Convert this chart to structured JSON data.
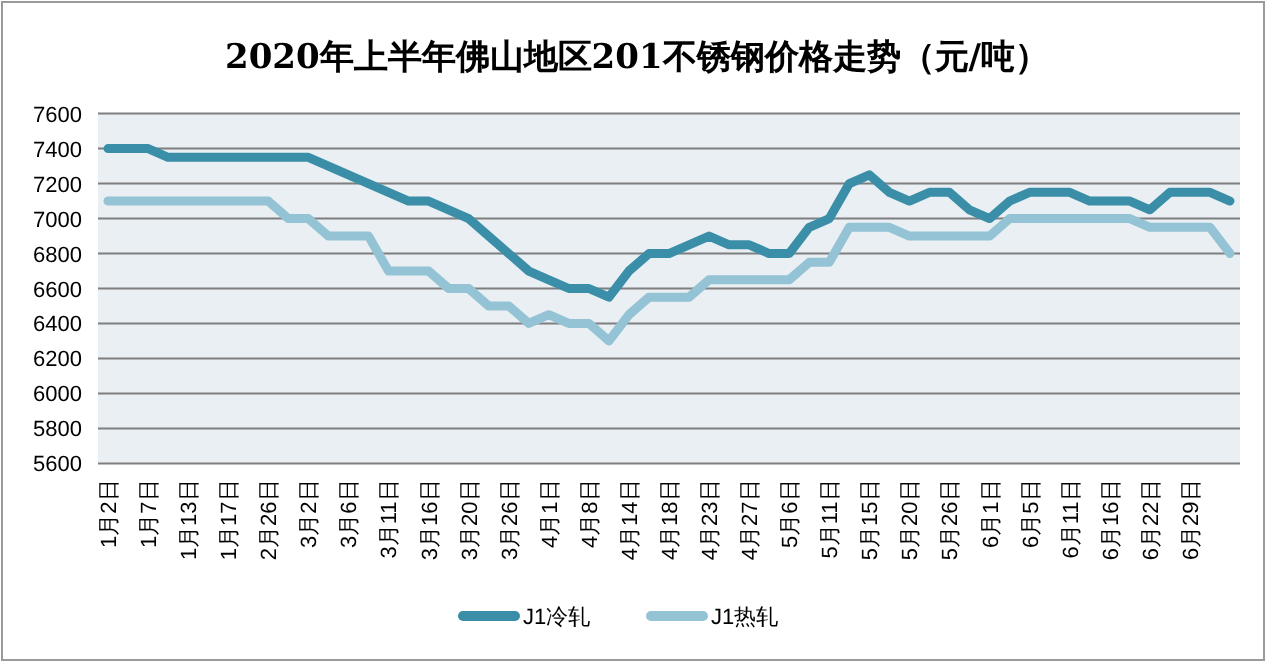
{
  "chart_data": {
    "type": "line",
    "title": "2020年上半年佛山地区201不锈钢价格走势（元/吨）",
    "categories": [
      "1月2日",
      null,
      "1月7日",
      null,
      "1月13日",
      null,
      "1月17日",
      null,
      "2月26日",
      null,
      "3月2日",
      null,
      "3月6日",
      null,
      "3月11日",
      null,
      "3月16日",
      null,
      "3月20日",
      null,
      "3月26日",
      null,
      "4月1日",
      null,
      "4月8日",
      null,
      "4月14日",
      null,
      "4月18日",
      null,
      "4月23日",
      null,
      "4月27日",
      null,
      "5月6日",
      null,
      "5月11日",
      null,
      "5月15日",
      null,
      "5月20日",
      null,
      "5月26日",
      null,
      "6月1日",
      null,
      "6月5日",
      null,
      "6月11日",
      null,
      "6月16日",
      null,
      "6月22日",
      null,
      "6月29日",
      null,
      null
    ],
    "series": [
      {
        "name": "J1冷轧",
        "color": "#3b8ea8",
        "values": [
          7400,
          7400,
          7400,
          7350,
          7350,
          7350,
          7350,
          7350,
          7350,
          7350,
          7350,
          7300,
          7250,
          7200,
          7150,
          7100,
          7100,
          7050,
          7000,
          6900,
          6800,
          6700,
          6650,
          6600,
          6600,
          6550,
          6700,
          6800,
          6800,
          6850,
          6900,
          6850,
          6850,
          6800,
          6800,
          6950,
          7000,
          7200,
          7250,
          7150,
          7100,
          7150,
          7150,
          7050,
          7000,
          7100,
          7150,
          7150,
          7150,
          7100,
          7100,
          7100,
          7050,
          7150,
          7150,
          7150,
          7100
        ]
      },
      {
        "name": "J1热轧",
        "color": "#93c3d4",
        "values": [
          7100,
          7100,
          7100,
          7100,
          7100,
          7100,
          7100,
          7100,
          7100,
          7000,
          7000,
          6900,
          6900,
          6900,
          6700,
          6700,
          6700,
          6600,
          6600,
          6500,
          6500,
          6400,
          6450,
          6400,
          6400,
          6300,
          6450,
          6550,
          6550,
          6550,
          6650,
          6650,
          6650,
          6650,
          6650,
          6750,
          6750,
          6950,
          6950,
          6950,
          6900,
          6900,
          6900,
          6900,
          6900,
          7000,
          7000,
          7000,
          7000,
          7000,
          7000,
          7000,
          6950,
          6950,
          6950,
          6950,
          6800
        ]
      }
    ],
    "ylim": [
      5600,
      7600
    ],
    "yticks": [
      5600,
      5800,
      6000,
      6200,
      6400,
      6600,
      6800,
      7000,
      7200,
      7400,
      7600
    ],
    "grid": "y",
    "legend": "bottom",
    "line_style": "solid",
    "marker": "none"
  }
}
